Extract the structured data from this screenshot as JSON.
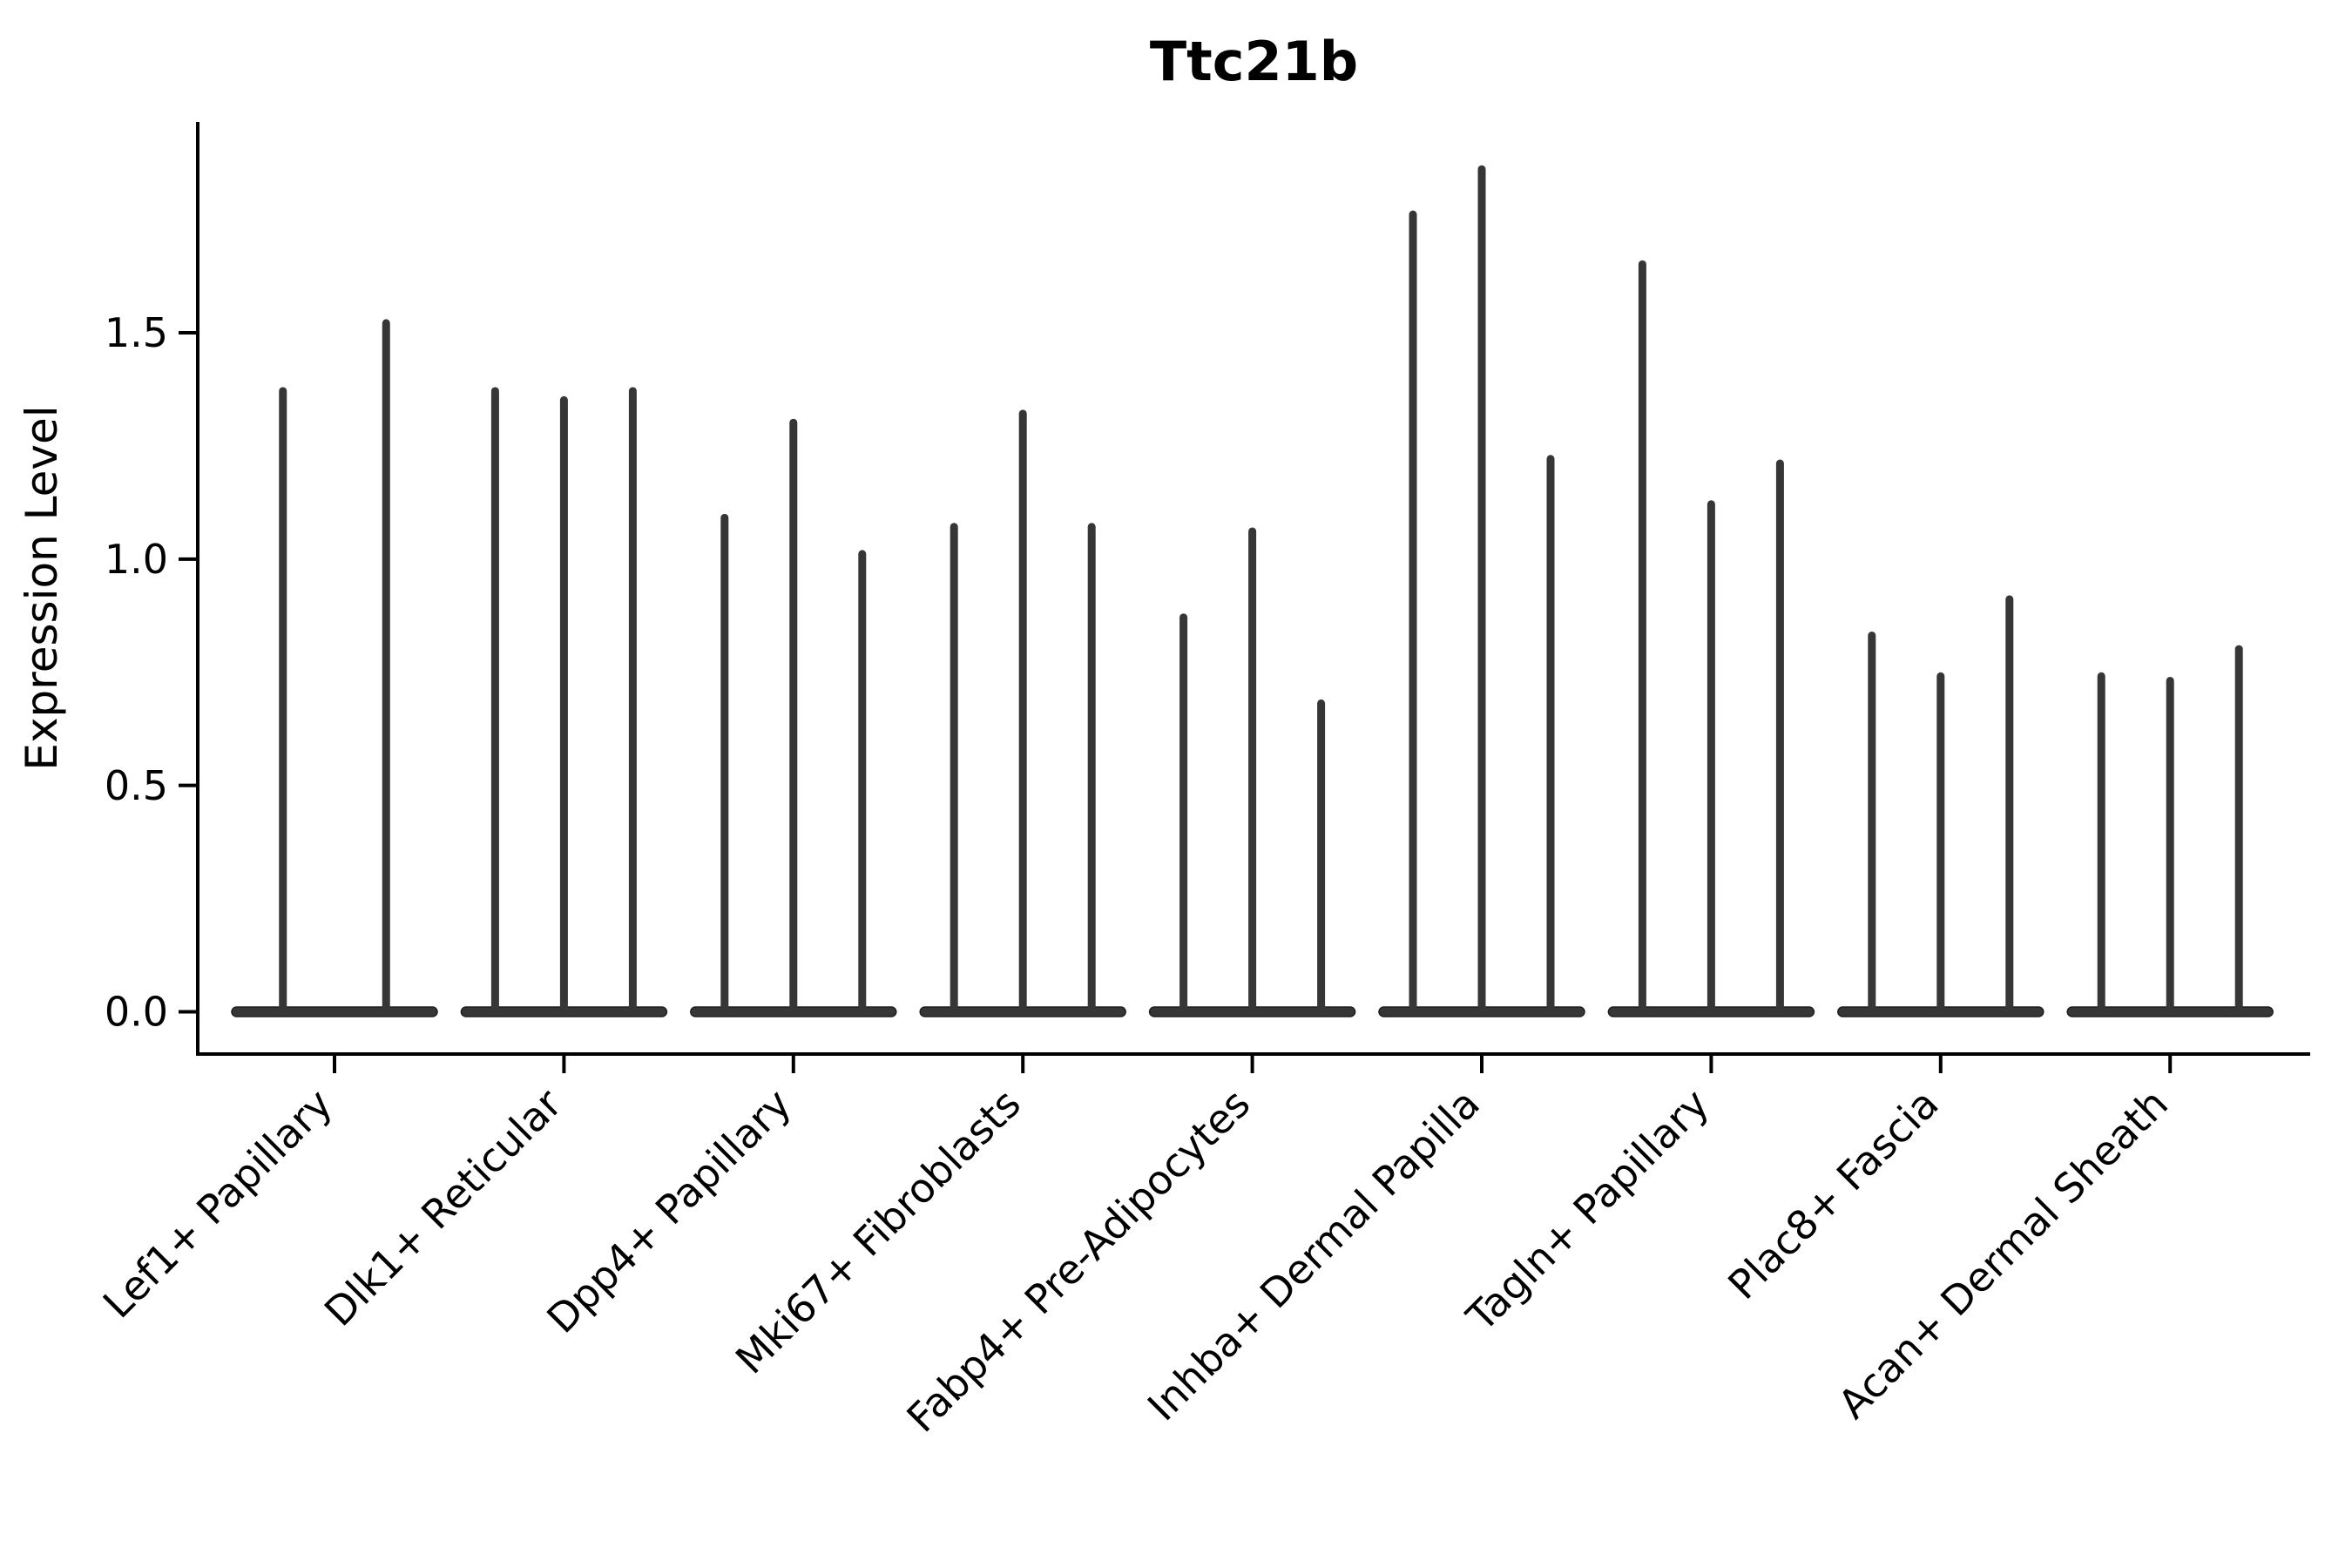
{
  "chart_data": {
    "type": "violin",
    "title": "Ttc21b",
    "ylabel": "Expression Level",
    "xlabel": "",
    "ylim": [
      0,
      1.97
    ],
    "ytick_values": [
      0.0,
      0.5,
      1.0,
      1.5
    ],
    "ytick_labels": [
      "0.0",
      "0.5",
      "1.0",
      "1.5"
    ],
    "grid": "off",
    "legend": "none",
    "violin_style": "thin-spike violins: wide flat density at 0 with narrow spike to maximum",
    "violin_color": "#363636",
    "axis_color": "#000000",
    "categories": [
      "Lef1+ Papillary",
      "Dlk1+ Reticular",
      "Dpp4+ Papillary",
      "Mki67+ Fibroblasts",
      "Fabp4+ Pre-Adipocytes",
      "Inhba+ Dermal Papilla",
      "Tagln+ Papillary",
      "Plac8+ Fascia",
      "Acan+ Dermal Sheath"
    ],
    "groups": [
      {
        "category": "Lef1+ Papillary",
        "violin_maxima": [
          1.38,
          1.53
        ]
      },
      {
        "category": "Dlk1+ Reticular",
        "violin_maxima": [
          1.38,
          1.36,
          1.38
        ]
      },
      {
        "category": "Dpp4+ Papillary",
        "violin_maxima": [
          1.1,
          1.31,
          1.02
        ]
      },
      {
        "category": "Mki67+ Fibroblasts",
        "violin_maxima": [
          1.08,
          1.33,
          1.08
        ]
      },
      {
        "category": "Fabp4+ Pre-Adipocytes",
        "violin_maxima": [
          0.88,
          1.07,
          0.69
        ]
      },
      {
        "category": "Inhba+ Dermal Papilla",
        "violin_maxima": [
          1.77,
          1.87,
          1.23
        ]
      },
      {
        "category": "Tagln+ Papillary",
        "violin_maxima": [
          1.66,
          1.13,
          1.22
        ]
      },
      {
        "category": "Plac8+ Fascia",
        "violin_maxima": [
          0.84,
          0.75,
          0.92
        ]
      },
      {
        "category": "Acan+ Dermal Sheath",
        "violin_maxima": [
          0.75,
          0.74,
          0.81
        ]
      }
    ]
  }
}
